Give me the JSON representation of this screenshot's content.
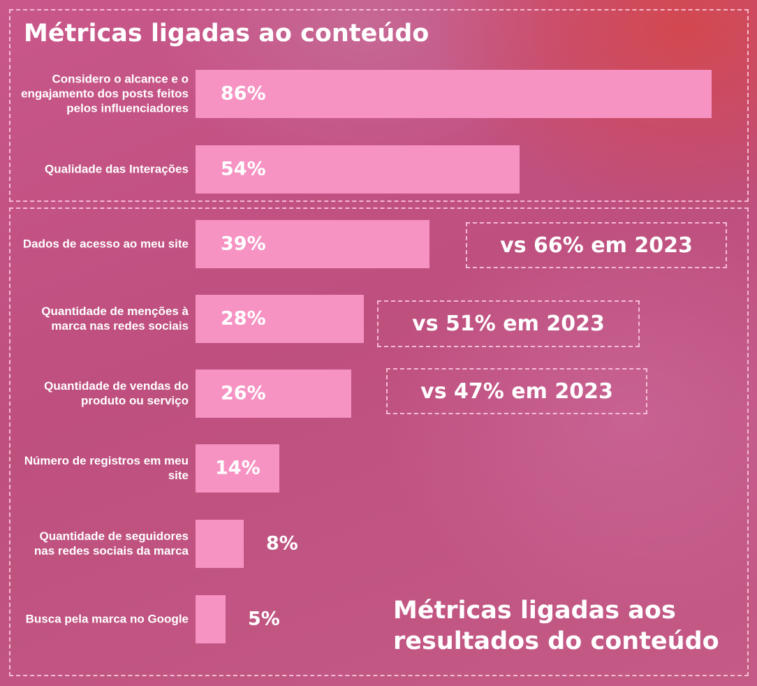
{
  "chart_data": {
    "type": "bar",
    "orientation": "horizontal",
    "title": "Métricas ligadas ao conteúdo",
    "section_titles": [
      "Métricas ligadas ao conteúdo",
      "Métricas ligadas aos resultados do conteúdo"
    ],
    "categories": [
      "Considero o alcance e o engajamento dos posts feitos pelos influenciadores",
      "Qualidade das Interações",
      "Dados de acesso ao meu site",
      "Quantidade de menções à marca nas redes sociais",
      "Quantidade de vendas do produto ou serviço",
      "Número de registros em meu site",
      "Quantidade de seguidores nas redes sociais da marca",
      "Busca pela marca no Google"
    ],
    "values": [
      86,
      54,
      39,
      28,
      26,
      14,
      8,
      5
    ],
    "value_labels": [
      "86%",
      "54%",
      "39%",
      "28%",
      "26%",
      "14%",
      "8%",
      "5%"
    ],
    "comparisons": [
      "",
      "",
      "vs 66% em 2023",
      "vs 51% em 2023",
      "vs 47% em 2023",
      "",
      "",
      ""
    ],
    "xlim": [
      0,
      86
    ],
    "grid": false,
    "bar_color": "#f693c3"
  }
}
